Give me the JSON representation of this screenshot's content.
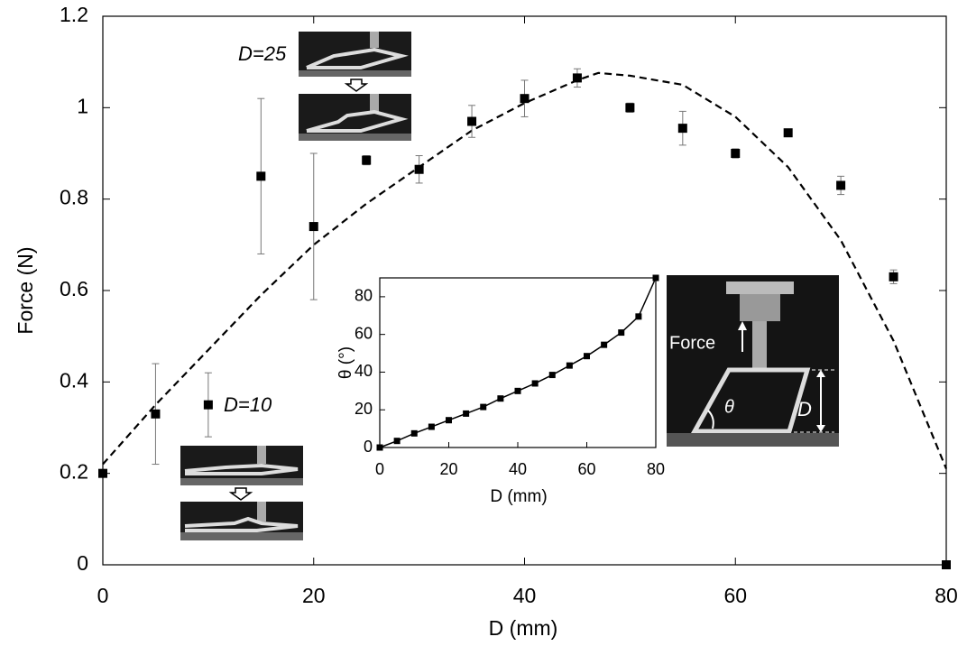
{
  "chart_data": [
    {
      "type": "scatter",
      "x_label": "D (mm)",
      "y_label": "Force (N)",
      "x": [
        0,
        5,
        10,
        15,
        20,
        25,
        30,
        35,
        40,
        45,
        50,
        55,
        60,
        65,
        70,
        75,
        80
      ],
      "values": [
        0.2,
        0.33,
        0.35,
        0.85,
        0.74,
        0.885,
        0.865,
        0.97,
        1.02,
        1.065,
        1.0,
        0.955,
        0.9,
        0.945,
        0.83,
        0.63,
        0
      ],
      "errors": [
        0,
        0.11,
        0.07,
        0.17,
        0.16,
        0.01,
        0.03,
        0.035,
        0.04,
        0.02,
        0.01,
        0.037,
        0.01,
        0,
        0.02,
        0.015,
        0
      ],
      "color": "#000000",
      "fit_x": [
        0,
        5,
        10,
        15,
        20,
        25,
        30,
        35,
        40,
        45,
        47,
        50,
        55,
        60,
        65,
        70,
        75,
        80
      ],
      "fit_values": [
        0.22,
        0.35,
        0.47,
        0.59,
        0.7,
        0.79,
        0.87,
        0.95,
        1.01,
        1.06,
        1.076,
        1.07,
        1.05,
        0.98,
        0.87,
        0.71,
        0.49,
        0.21
      ],
      "xlim": [
        0,
        80
      ],
      "ylim": [
        0,
        1.2
      ],
      "xticks": [
        0,
        20,
        40,
        60,
        80
      ],
      "yticks": [
        0,
        0.2,
        0.4,
        0.6,
        0.8,
        1,
        1.2
      ],
      "annotations": [
        "D=25",
        "D=10"
      ]
    },
    {
      "type": "line",
      "x_label": "D (mm)",
      "y_label": "θ (°)",
      "x": [
        0,
        5,
        10,
        15,
        20,
        25,
        30,
        35,
        40,
        45,
        50,
        55,
        60,
        65,
        70,
        75,
        80
      ],
      "values": [
        0,
        3.5,
        7.5,
        11,
        14.5,
        18,
        21.5,
        26,
        30,
        34,
        38.5,
        43.5,
        48.5,
        54.5,
        61,
        69.5,
        90
      ],
      "color": "#000000",
      "xlim": [
        0,
        80
      ],
      "ylim": [
        0,
        90
      ],
      "xticks": [
        0,
        20,
        40,
        60,
        80
      ],
      "yticks": [
        0,
        20,
        40,
        60,
        80
      ],
      "annotations": [
        "Force",
        "θ",
        "D"
      ]
    }
  ]
}
